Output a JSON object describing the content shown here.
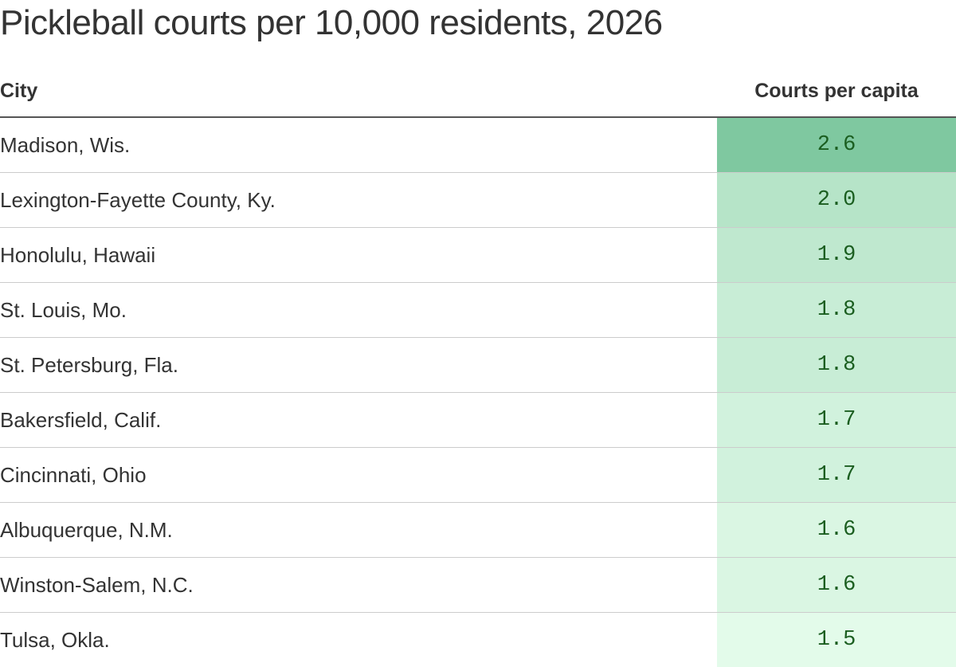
{
  "header": {
    "title": "Pickleball courts per 10,000 residents, 2026"
  },
  "table": {
    "columns": [
      "City",
      "Courts per capita"
    ],
    "rows": [
      [
        "Madison, Wis.",
        "2.6"
      ],
      [
        "Lexington-Fayette County, Ky.",
        "2.0"
      ],
      [
        "Honolulu, Hawaii",
        "1.9"
      ],
      [
        "St. Louis, Mo.",
        "1.8"
      ],
      [
        "St. Petersburg, Fla.",
        "1.8"
      ],
      [
        "Bakersfield, Calif.",
        "1.7"
      ],
      [
        "Cincinnati, Ohio",
        "1.7"
      ],
      [
        "Albuquerque, N.M.",
        "1.6"
      ],
      [
        "Winston-Salem, N.C.",
        "1.6"
      ],
      [
        "Tulsa, Okla.",
        "1.5"
      ]
    ],
    "scale_colors": [
      "#e3fbea",
      "#7fc8a0"
    ]
  }
}
